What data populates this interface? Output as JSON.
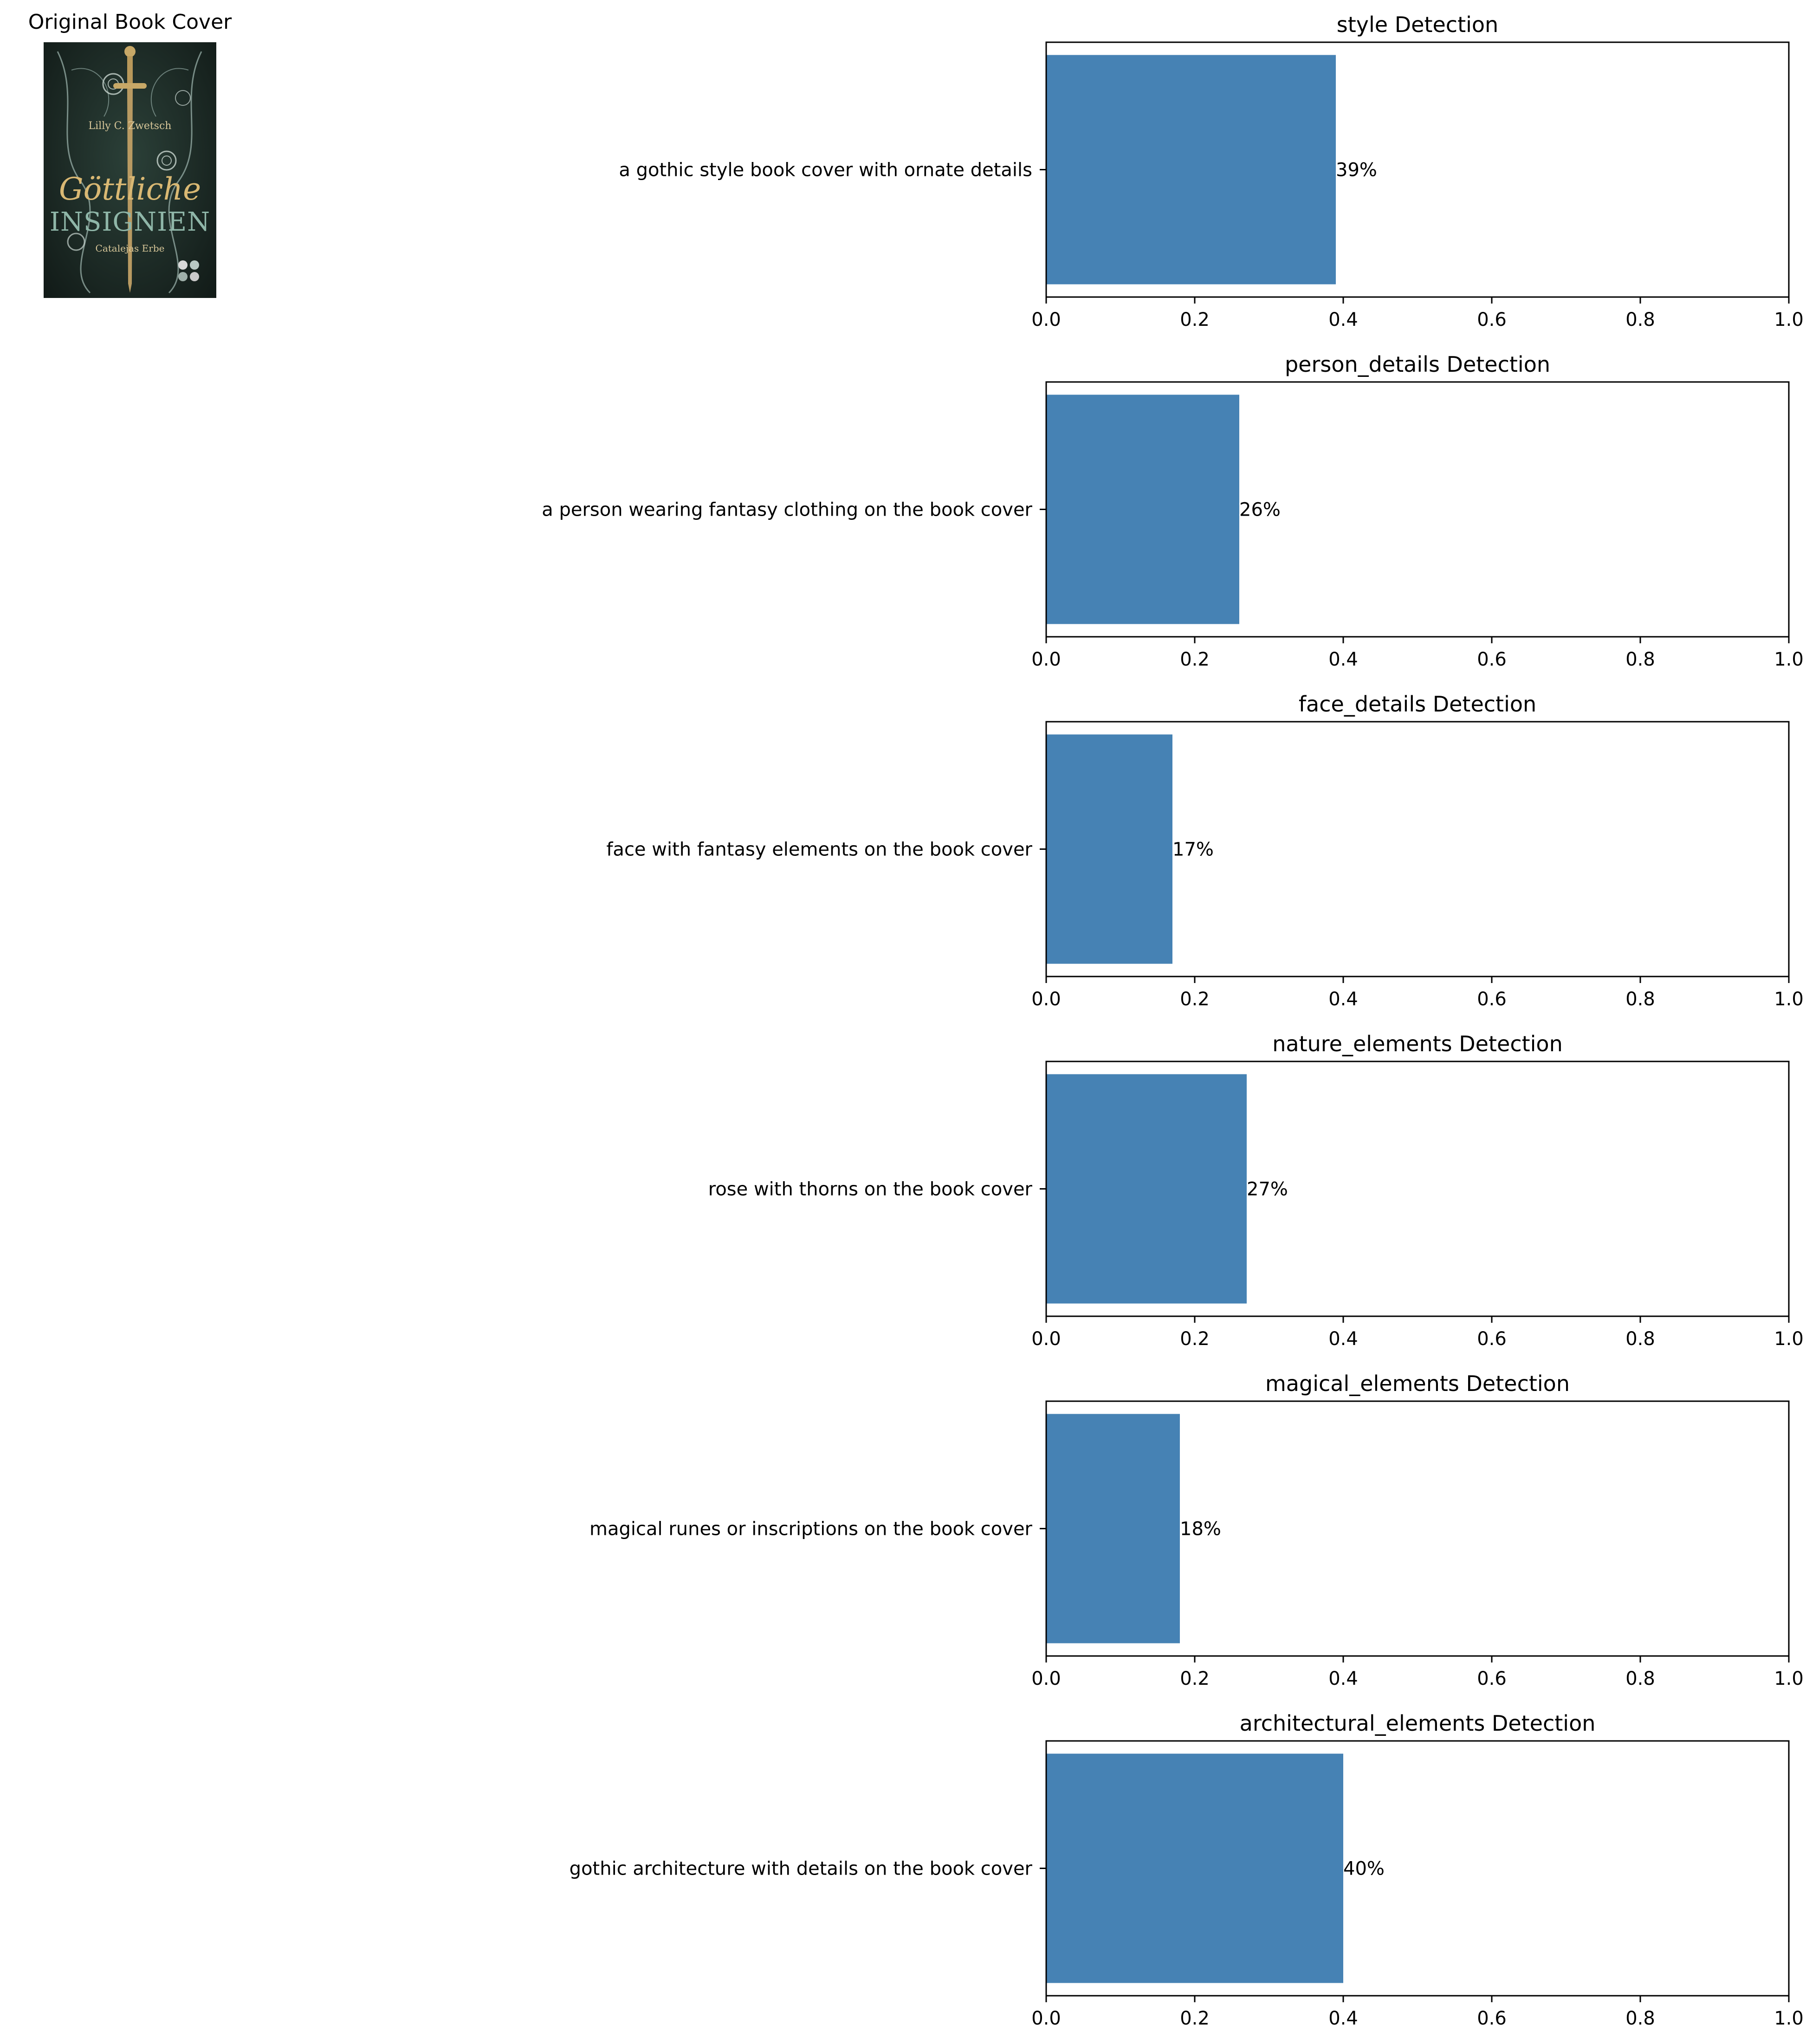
{
  "figure": {
    "cover_title": "Original Book Cover",
    "cover": {
      "author": "Lilly C. Zwetsch",
      "title_line1": "Göttliche",
      "title_line2": "INSIGNIEN",
      "subtitle": "Catalejas Erbe",
      "colors": {
        "background": "#1d2b26",
        "gold": "#d9b873",
        "teal": "#8fb6a8"
      }
    }
  },
  "chart_data": [
    {
      "type": "bar",
      "orientation": "horizontal",
      "title": "style Detection",
      "categories": [
        "a gothic style book cover with ornate details"
      ],
      "values": [
        0.39
      ],
      "labels": [
        "39%"
      ],
      "xlim": [
        0,
        1
      ],
      "xticks": [
        "0.0",
        "0.2",
        "0.4",
        "0.6",
        "0.8",
        "1.0"
      ],
      "color": "#4682b4",
      "grid": false
    },
    {
      "type": "bar",
      "orientation": "horizontal",
      "title": "person_details Detection",
      "categories": [
        "a person wearing fantasy clothing on the book cover"
      ],
      "values": [
        0.26
      ],
      "labels": [
        "26%"
      ],
      "xlim": [
        0,
        1
      ],
      "xticks": [
        "0.0",
        "0.2",
        "0.4",
        "0.6",
        "0.8",
        "1.0"
      ],
      "color": "#4682b4",
      "grid": false
    },
    {
      "type": "bar",
      "orientation": "horizontal",
      "title": "face_details Detection",
      "categories": [
        "face with fantasy elements on the book cover"
      ],
      "values": [
        0.17
      ],
      "labels": [
        "17%"
      ],
      "xlim": [
        0,
        1
      ],
      "xticks": [
        "0.0",
        "0.2",
        "0.4",
        "0.6",
        "0.8",
        "1.0"
      ],
      "color": "#4682b4",
      "grid": false
    },
    {
      "type": "bar",
      "orientation": "horizontal",
      "title": "nature_elements Detection",
      "categories": [
        "rose with thorns on the book cover"
      ],
      "values": [
        0.27
      ],
      "labels": [
        "27%"
      ],
      "xlim": [
        0,
        1
      ],
      "xticks": [
        "0.0",
        "0.2",
        "0.4",
        "0.6",
        "0.8",
        "1.0"
      ],
      "color": "#4682b4",
      "grid": false
    },
    {
      "type": "bar",
      "orientation": "horizontal",
      "title": "magical_elements Detection",
      "categories": [
        "magical runes or inscriptions on the book cover"
      ],
      "values": [
        0.18
      ],
      "labels": [
        "18%"
      ],
      "xlim": [
        0,
        1
      ],
      "xticks": [
        "0.0",
        "0.2",
        "0.4",
        "0.6",
        "0.8",
        "1.0"
      ],
      "color": "#4682b4",
      "grid": false
    },
    {
      "type": "bar",
      "orientation": "horizontal",
      "title": "architectural_elements Detection",
      "categories": [
        "gothic architecture with details on the book cover"
      ],
      "values": [
        0.4
      ],
      "labels": [
        "40%"
      ],
      "xlim": [
        0,
        1
      ],
      "xticks": [
        "0.0",
        "0.2",
        "0.4",
        "0.6",
        "0.8",
        "1.0"
      ],
      "color": "#4682b4",
      "grid": false
    }
  ]
}
